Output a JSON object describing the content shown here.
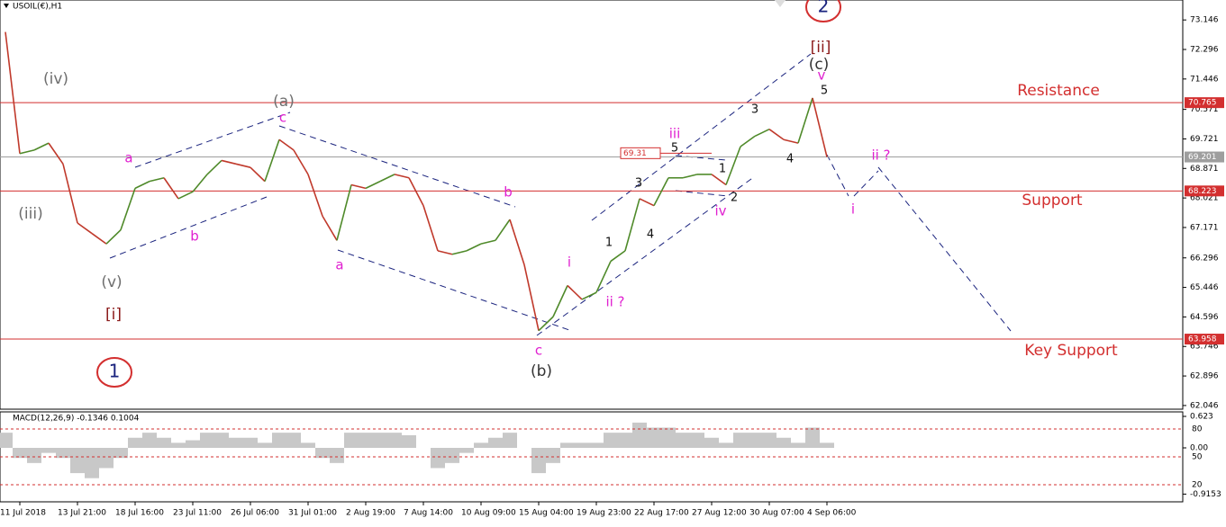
{
  "chart_data": {
    "type": "line",
    "title": "USOIL(€),H1",
    "categories": [
      null,
      "11 Jul 2018",
      null,
      null,
      null,
      "13 Jul 21:00",
      null,
      null,
      null,
      "18 Jul 16:00",
      null,
      null,
      null,
      "23 Jul 11:00",
      null,
      null,
      null,
      "26 Jul 06:00",
      null,
      null,
      null,
      "31 Jul 01:00",
      null,
      null,
      null,
      "2 Aug 19:00",
      null,
      null,
      null,
      "7 Aug 14:00",
      null,
      null,
      null,
      "10 Aug 09:00",
      null,
      null,
      null,
      "15 Aug 04:00",
      null,
      null,
      null,
      "19 Aug 23:00",
      null,
      null,
      null,
      "22 Aug 17:00",
      null,
      null,
      null,
      "27 Aug 12:00",
      null,
      null,
      null,
      "30 Aug 07:00",
      null,
      null,
      null,
      "4 Sep 06:00"
    ],
    "series": [
      {
        "color": "#4f8a2a",
        "down_color": "#c0392b",
        "values": [
          72.8,
          69.3,
          69.4,
          69.6,
          69.0,
          67.3,
          67.0,
          66.7,
          67.1,
          68.3,
          68.5,
          68.6,
          68.0,
          68.2,
          68.7,
          69.1,
          69.0,
          68.9,
          68.5,
          69.7,
          69.4,
          68.7,
          67.5,
          66.8,
          68.4,
          68.3,
          68.5,
          68.7,
          68.6,
          67.8,
          66.5,
          66.4,
          66.5,
          66.7,
          66.8,
          67.4,
          66.1,
          64.2,
          64.6,
          65.5,
          65.1,
          65.3,
          66.2,
          66.5,
          68.0,
          67.8,
          68.6,
          68.6,
          68.7,
          68.7,
          68.4,
          69.5,
          69.8,
          70.0,
          69.7,
          69.6,
          70.9,
          69.2
        ]
      }
    ],
    "ylim": [
      61.94,
      73.72
    ],
    "yticks": [
      73.146,
      72.296,
      71.446,
      70.571,
      69.721,
      68.871,
      68.021,
      67.171,
      66.296,
      65.446,
      64.596,
      63.746,
      62.896,
      62.046
    ],
    "levels": [
      {
        "value": 70.765,
        "color": "#d32f2f"
      },
      {
        "value": 69.201,
        "color": "#9e9e9e"
      },
      {
        "value": 68.223,
        "color": "#d32f2f"
      },
      {
        "value": 63.958,
        "color": "#d32f2f"
      }
    ],
    "marked_level": 69.31,
    "annotations": [
      "(iv)",
      "(iii)",
      "(v)",
      "[i]",
      "1",
      "(a)",
      "c",
      "a",
      "b",
      "a",
      "b",
      "c",
      "(b)",
      "i",
      "ii ?",
      "1",
      "3",
      "4",
      "5",
      "iii",
      "1",
      "2",
      "iv",
      "3",
      "4",
      "5",
      "v",
      "(c)",
      "[ii]",
      "2",
      "i",
      "ii ?",
      "Resistance",
      "Support",
      "Key Support"
    ],
    "macd": {
      "title": "MACD(12,26,9) -0.1346 0.1004",
      "color": "#c8c8c8",
      "values": [
        0.3,
        -0.2,
        -0.3,
        -0.1,
        -0.2,
        -0.5,
        -0.6,
        -0.4,
        -0.2,
        0.2,
        0.3,
        0.2,
        0.1,
        0.15,
        0.3,
        0.3,
        0.2,
        0.2,
        0.1,
        0.3,
        0.3,
        0.1,
        -0.2,
        -0.3,
        0.3,
        0.3,
        0.3,
        0.3,
        0.25,
        0.0,
        -0.4,
        -0.3,
        -0.1,
        0.1,
        0.2,
        0.3,
        0.0,
        -0.5,
        -0.3,
        0.1,
        0.1,
        0.1,
        0.3,
        0.3,
        0.5,
        0.4,
        0.4,
        0.3,
        0.3,
        0.2,
        0.1,
        0.3,
        0.3,
        0.3,
        0.2,
        0.1,
        0.4,
        0.1
      ],
      "ylim": [
        -1.068,
        0.712
      ],
      "yticks": [
        0.623,
        {
          "value": 0,
          "label": "0.00"
        },
        -0.9153
      ],
      "level_lim": [
        1.6,
        98.4
      ],
      "level_ticks": [
        80,
        50,
        20
      ]
    }
  }
}
